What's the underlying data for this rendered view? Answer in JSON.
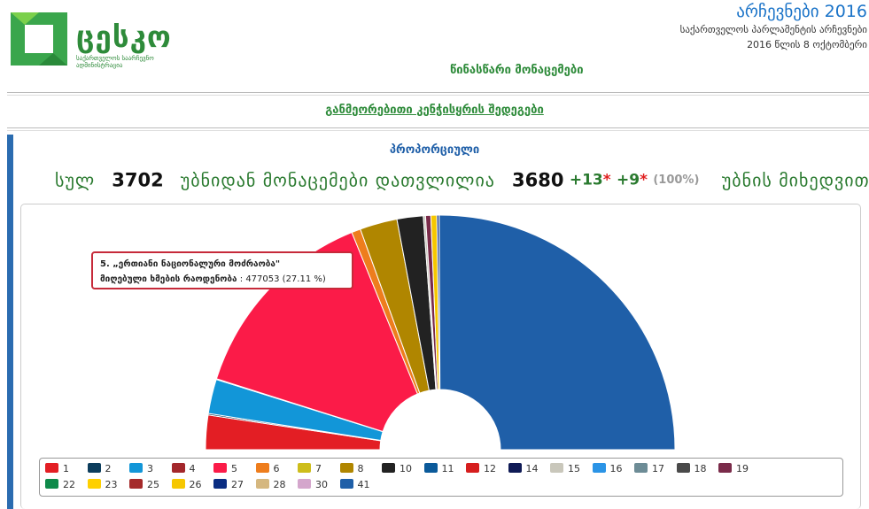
{
  "header": {
    "logo_text": "ცესკო",
    "logo_sub": "საქართველოს საარჩევნო ადმინისტრაცია",
    "election_title": "არჩევნები 2016",
    "election_sub1": "საქართველოს პარლამენტის არჩევნები",
    "election_sub2": "2016 წლის 8 ოქტომბერი",
    "prelim_label": "წინასწარი მონაცემები",
    "detailed_link": "განმეორებითი კენჭისყრის შედეგები"
  },
  "summary": {
    "section_title": "პროპორციული",
    "total_label": "სულ",
    "total_precincts": "3702",
    "mid_label": "უბნიდან მონაცემები დათვლილია",
    "counted": "3680",
    "plus1": "+13",
    "plus2": "+9",
    "star": "*",
    "percent": "(100%)",
    "end_label": "უბნის მიხედვით"
  },
  "tooltip": {
    "party_name": "5. „ერთიანი ნაციონალური მოძრაობა\"",
    "votes_label": "მიღებული ხმების რაოდენობა",
    "votes_value": ": 477053 (27.11 %)"
  },
  "colors": {
    "green": "#2e8b3a",
    "blue": "#1a73c8",
    "tooltip_border": "#c62a3a"
  },
  "chart_data": {
    "type": "pie",
    "subtype": "semi-circle donut",
    "series": [
      {
        "label": "1",
        "color": "#e31e24",
        "percent": 4.6
      },
      {
        "label": "2",
        "color": "#0c3d5c",
        "percent": 0.2
      },
      {
        "label": "3",
        "color": "#1296d8",
        "percent": 4.6
      },
      {
        "label": "4",
        "color": "#a3272b",
        "percent": 0.1
      },
      {
        "label": "5",
        "color": "#fb1b48",
        "percent": 27.11
      },
      {
        "label": "6",
        "color": "#ee7d1d",
        "percent": 1.2
      },
      {
        "label": "7",
        "color": "#cdbd1b",
        "percent": 0.2
      },
      {
        "label": "8",
        "color": "#b08600",
        "percent": 5.0
      },
      {
        "label": "10",
        "color": "#222222",
        "percent": 3.5
      },
      {
        "label": "11",
        "color": "#0b5a9a",
        "percent": 0.2
      },
      {
        "label": "12",
        "color": "#d61e1e",
        "percent": 0.1
      },
      {
        "label": "14",
        "color": "#0f1a55",
        "percent": 0.1
      },
      {
        "label": "15",
        "color": "#c9c7bb",
        "percent": 0.3
      },
      {
        "label": "16",
        "color": "#2b94e6",
        "percent": 0.1
      },
      {
        "label": "17",
        "color": "#6d8c96",
        "percent": 0.3
      },
      {
        "label": "18",
        "color": "#4a4a4a",
        "percent": 0.2
      },
      {
        "label": "19",
        "color": "#7a2b4a",
        "percent": 0.7
      },
      {
        "label": "22",
        "color": "#0f8a4a",
        "percent": 0.1
      },
      {
        "label": "23",
        "color": "#fed000",
        "percent": 0.1
      },
      {
        "label": "25",
        "color": "#a52a2a",
        "percent": 0.1
      },
      {
        "label": "26",
        "color": "#f6c700",
        "percent": 0.8
      },
      {
        "label": "27",
        "color": "#0a2d82",
        "percent": 0.3
      },
      {
        "label": "28",
        "color": "#d5b77f",
        "percent": 0.2
      },
      {
        "label": "30",
        "color": "#d4a6cc",
        "percent": 0.1
      },
      {
        "label": "41",
        "color": "#1f5fa8",
        "percent": 48.7
      }
    ],
    "order": [
      "1",
      "2",
      "3",
      "4",
      "5",
      "6",
      "8",
      "10",
      "15",
      "19",
      "26",
      "27",
      "41"
    ]
  },
  "legend": {
    "row1": [
      "1",
      "2",
      "3",
      "4",
      "5",
      "6",
      "7",
      "8",
      "10",
      "11",
      "12",
      "14",
      "15",
      "16",
      "17",
      "18",
      "19"
    ],
    "row2": [
      "22",
      "23",
      "25",
      "26",
      "27",
      "28",
      "30",
      "41"
    ]
  }
}
